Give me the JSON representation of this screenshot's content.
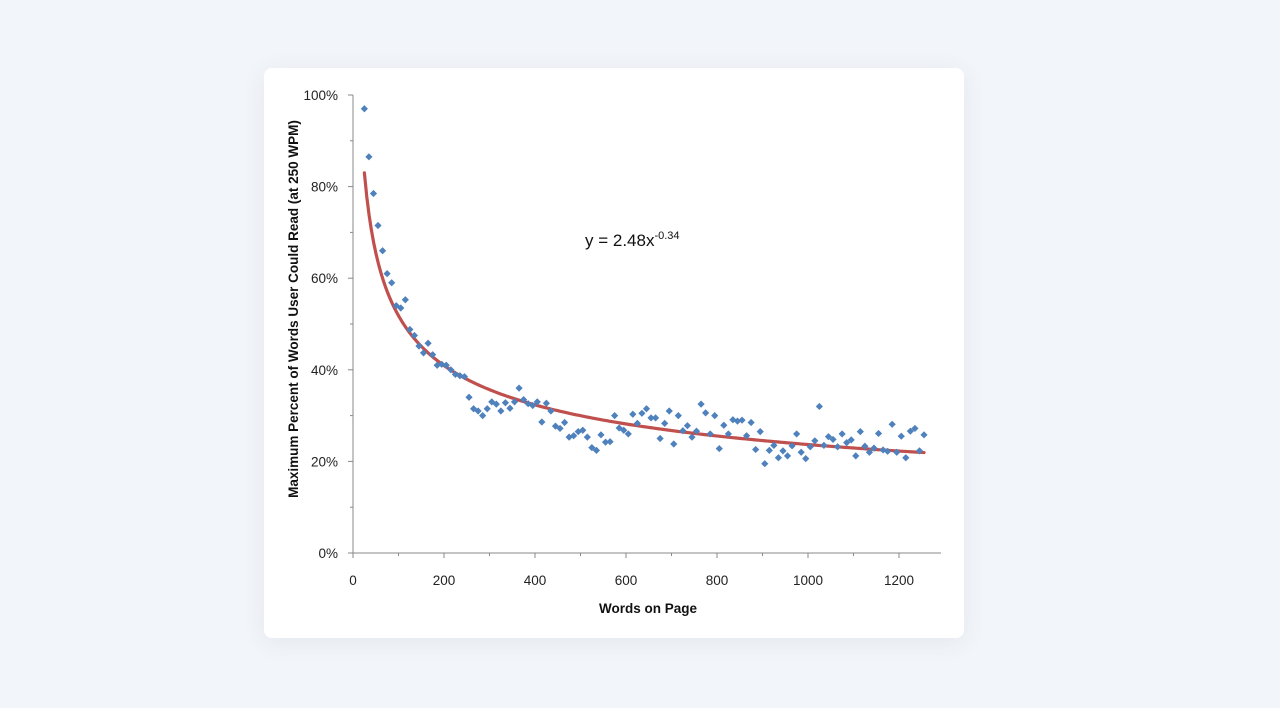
{
  "chart_data": {
    "type": "scatter",
    "xlabel": "Words on Page",
    "ylabel": "Maximum Percent of Words User Could Read (at 250 WPM)",
    "xlim": [
      0,
      1300
    ],
    "ylim": [
      0,
      100
    ],
    "x_ticks": [
      0,
      200,
      400,
      600,
      800,
      1000,
      1200
    ],
    "y_ticks": [
      0,
      20,
      40,
      60,
      80,
      100
    ],
    "x_tick_labels": [
      "0",
      "200",
      "400",
      "600",
      "800",
      "1000",
      "1200"
    ],
    "y_tick_labels": [
      "0%",
      "20%",
      "40%",
      "60%",
      "80%",
      "100%"
    ],
    "grid": false,
    "annotation": {
      "base": "y = 2.48x",
      "exponent": "-0.34"
    },
    "trendline": {
      "type": "power",
      "coefficient": 2.48,
      "exponent": -0.34,
      "x_range": [
        25,
        1255
      ],
      "color": "#c0504d"
    },
    "marker_color": "#4f81bd",
    "points": [
      [
        25,
        97
      ],
      [
        35,
        86.5
      ],
      [
        45,
        78.5
      ],
      [
        55,
        71.5
      ],
      [
        65,
        66
      ],
      [
        75,
        61
      ],
      [
        85,
        59
      ],
      [
        95,
        54
      ],
      [
        105,
        53.5
      ],
      [
        115,
        55.3
      ],
      [
        125,
        48.8
      ],
      [
        135,
        47.5
      ],
      [
        145,
        45.2
      ],
      [
        155,
        43.7
      ],
      [
        165,
        45.8
      ],
      [
        175,
        43.3
      ],
      [
        185,
        41
      ],
      [
        195,
        41.2
      ],
      [
        205,
        41
      ],
      [
        215,
        40
      ],
      [
        225,
        39
      ],
      [
        235,
        38.7
      ],
      [
        245,
        38.5
      ],
      [
        255,
        34
      ],
      [
        265,
        31.5
      ],
      [
        275,
        31
      ],
      [
        285,
        30
      ],
      [
        295,
        31.5
      ],
      [
        305,
        33
      ],
      [
        315,
        32.5
      ],
      [
        325,
        31
      ],
      [
        335,
        32.8
      ],
      [
        345,
        31.6
      ],
      [
        355,
        33
      ],
      [
        365,
        36
      ],
      [
        375,
        33.5
      ],
      [
        385,
        32.6
      ],
      [
        395,
        32.2
      ],
      [
        405,
        33
      ],
      [
        415,
        28.6
      ],
      [
        425,
        32.7
      ],
      [
        435,
        31
      ],
      [
        445,
        27.7
      ],
      [
        455,
        27.2
      ],
      [
        465,
        28.5
      ],
      [
        475,
        25.3
      ],
      [
        485,
        25.6
      ],
      [
        495,
        26.5
      ],
      [
        505,
        26.8
      ],
      [
        515,
        25.3
      ],
      [
        525,
        23
      ],
      [
        535,
        22.4
      ],
      [
        545,
        25.8
      ],
      [
        555,
        24.2
      ],
      [
        565,
        24.3
      ],
      [
        575,
        30
      ],
      [
        585,
        27.3
      ],
      [
        595,
        26.8
      ],
      [
        605,
        26
      ],
      [
        615,
        30.3
      ],
      [
        625,
        28.3
      ],
      [
        635,
        30.5
      ],
      [
        645,
        31.5
      ],
      [
        655,
        29.5
      ],
      [
        665,
        29.5
      ],
      [
        675,
        25
      ],
      [
        685,
        28.3
      ],
      [
        695,
        31
      ],
      [
        705,
        23.8
      ],
      [
        715,
        30
      ],
      [
        725,
        26.7
      ],
      [
        735,
        27.8
      ],
      [
        745,
        25.3
      ],
      [
        755,
        26.6
      ],
      [
        765,
        32.5
      ],
      [
        775,
        30.6
      ],
      [
        785,
        26
      ],
      [
        795,
        30
      ],
      [
        805,
        22.8
      ],
      [
        815,
        27.9
      ],
      [
        825,
        26
      ],
      [
        835,
        29.1
      ],
      [
        845,
        28.8
      ],
      [
        855,
        29
      ],
      [
        865,
        25.6
      ],
      [
        875,
        28.5
      ],
      [
        885,
        22.6
      ],
      [
        895,
        26.5
      ],
      [
        905,
        19.5
      ],
      [
        915,
        22.4
      ],
      [
        925,
        23.5
      ],
      [
        935,
        20.8
      ],
      [
        945,
        22.3
      ],
      [
        955,
        21.2
      ],
      [
        965,
        23.4
      ],
      [
        975,
        26
      ],
      [
        985,
        22
      ],
      [
        995,
        20.6
      ],
      [
        1005,
        23.2
      ],
      [
        1015,
        24.5
      ],
      [
        1025,
        32
      ],
      [
        1035,
        23.5
      ],
      [
        1045,
        25.4
      ],
      [
        1055,
        24.8
      ],
      [
        1065,
        23.2
      ],
      [
        1075,
        26
      ],
      [
        1085,
        24.1
      ],
      [
        1095,
        24.7
      ],
      [
        1105,
        21.2
      ],
      [
        1115,
        26.5
      ],
      [
        1125,
        23.3
      ],
      [
        1135,
        22
      ],
      [
        1145,
        22.9
      ],
      [
        1155,
        26.1
      ],
      [
        1165,
        22.5
      ],
      [
        1175,
        22.2
      ],
      [
        1185,
        28.1
      ],
      [
        1195,
        22
      ],
      [
        1205,
        25.5
      ],
      [
        1215,
        20.8
      ],
      [
        1225,
        26.6
      ],
      [
        1235,
        27.2
      ],
      [
        1245,
        22.3
      ],
      [
        1255,
        25.8
      ]
    ]
  }
}
